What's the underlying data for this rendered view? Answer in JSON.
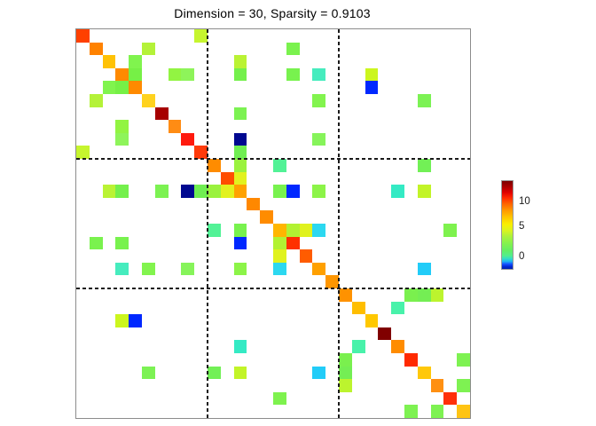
{
  "title": "Dimension = 30, Sparsity = 0.9103",
  "chart_data": {
    "type": "heatmap",
    "title": "Dimension = 30, Sparsity = 0.9103",
    "matrix_dimension": 30,
    "sparsity": 0.9103,
    "block_partitions": [
      10,
      20
    ],
    "grid": "off",
    "axis_tick_labels": "none",
    "legend_position": "colorbar-right",
    "colorbar": {
      "ticks": [
        {
          "label": "10",
          "pos_from_top": 0.245
        },
        {
          "label": "5",
          "pos_from_top": 0.53
        },
        {
          "label": "0",
          "pos_from_top": 0.864
        }
      ],
      "gradient_top_to_bottom": [
        {
          "p": 0,
          "c": "#7A0000"
        },
        {
          "p": 6,
          "c": "#A80000"
        },
        {
          "p": 13,
          "c": "#E00000"
        },
        {
          "p": 19,
          "c": "#FF2800"
        },
        {
          "p": 26,
          "c": "#FF6400"
        },
        {
          "p": 33,
          "c": "#FF9600"
        },
        {
          "p": 41,
          "c": "#FFC400"
        },
        {
          "p": 49,
          "c": "#FAEE00"
        },
        {
          "p": 56,
          "c": "#DCF41E"
        },
        {
          "p": 63,
          "c": "#ACF23C"
        },
        {
          "p": 71,
          "c": "#84F24E"
        },
        {
          "p": 79,
          "c": "#64EE64"
        },
        {
          "p": 85,
          "c": "#52EE8C"
        },
        {
          "p": 88.5,
          "c": "#32DCC8"
        },
        {
          "p": 91.5,
          "c": "#1EB4F0"
        },
        {
          "p": 94.5,
          "c": "#1450FF"
        },
        {
          "p": 97.5,
          "c": "#0028D2"
        },
        {
          "p": 100,
          "c": "#0020AE"
        }
      ]
    },
    "cells": [
      [
        0,
        0,
        "#FF4000"
      ],
      [
        1,
        1,
        "#FF8200"
      ],
      [
        2,
        2,
        "#FFC206"
      ],
      [
        3,
        3,
        "#FF8A00"
      ],
      [
        4,
        4,
        "#FF8A00"
      ],
      [
        5,
        5,
        "#FFD21E"
      ],
      [
        6,
        6,
        "#A60000"
      ],
      [
        7,
        7,
        "#FF8C14"
      ],
      [
        8,
        8,
        "#FF1A0E"
      ],
      [
        9,
        9,
        "#FF3B0B"
      ],
      [
        10,
        10,
        "#FF8C00"
      ],
      [
        11,
        11,
        "#FF4E00"
      ],
      [
        12,
        12,
        "#FFA200"
      ],
      [
        13,
        13,
        "#FF8800"
      ],
      [
        14,
        14,
        "#FF8C00"
      ],
      [
        15,
        15,
        "#FFB600"
      ],
      [
        16,
        16,
        "#FF3000"
      ],
      [
        17,
        17,
        "#FF5C00"
      ],
      [
        18,
        18,
        "#FFA000"
      ],
      [
        19,
        19,
        "#FF9600"
      ],
      [
        20,
        20,
        "#FF9200"
      ],
      [
        21,
        21,
        "#FFBE00"
      ],
      [
        22,
        22,
        "#FFC800"
      ],
      [
        23,
        23,
        "#800000"
      ],
      [
        24,
        24,
        "#FF8C00"
      ],
      [
        25,
        25,
        "#FF2A00"
      ],
      [
        26,
        26,
        "#FFC80A"
      ],
      [
        27,
        27,
        "#FF9012"
      ],
      [
        28,
        28,
        "#FF3008"
      ],
      [
        29,
        29,
        "#FFC414"
      ],
      [
        0,
        9,
        "#C6F52E"
      ],
      [
        9,
        0,
        "#C6F52E"
      ],
      [
        1,
        5,
        "#B4F238"
      ],
      [
        5,
        1,
        "#B4F238"
      ],
      [
        1,
        16,
        "#7AF24E"
      ],
      [
        16,
        1,
        "#7AF24E"
      ],
      [
        2,
        4,
        "#80F44E"
      ],
      [
        4,
        2,
        "#80F44E"
      ],
      [
        3,
        4,
        "#76F046"
      ],
      [
        4,
        3,
        "#76F046"
      ],
      [
        2,
        12,
        "#BAF334"
      ],
      [
        12,
        2,
        "#BAF334"
      ],
      [
        3,
        7,
        "#92F442"
      ],
      [
        7,
        3,
        "#92F442"
      ],
      [
        3,
        8,
        "#8EF45A"
      ],
      [
        8,
        3,
        "#8EF45A"
      ],
      [
        3,
        12,
        "#74F04C"
      ],
      [
        12,
        3,
        "#74F04C"
      ],
      [
        3,
        16,
        "#78F24E"
      ],
      [
        16,
        3,
        "#78F24E"
      ],
      [
        3,
        18,
        "#46ECBE"
      ],
      [
        18,
        3,
        "#46ECBE"
      ],
      [
        3,
        22,
        "#CCF61E"
      ],
      [
        22,
        3,
        "#CCF61E"
      ],
      [
        4,
        22,
        "#0028FF"
      ],
      [
        22,
        4,
        "#0028FF"
      ],
      [
        5,
        18,
        "#82F44E"
      ],
      [
        18,
        5,
        "#82F44E"
      ],
      [
        5,
        26,
        "#7CF254"
      ],
      [
        26,
        5,
        "#7CF254"
      ],
      [
        6,
        12,
        "#7CF252"
      ],
      [
        12,
        6,
        "#7CF252"
      ],
      [
        8,
        12,
        "#000890"
      ],
      [
        12,
        8,
        "#000890"
      ],
      [
        8,
        18,
        "#86F45A"
      ],
      [
        18,
        8,
        "#86F45A"
      ],
      [
        9,
        12,
        "#70EE52"
      ],
      [
        12,
        9,
        "#70EE52"
      ],
      [
        10,
        12,
        "#9AF23E"
      ],
      [
        12,
        10,
        "#9AF23E"
      ],
      [
        10,
        15,
        "#52F296"
      ],
      [
        15,
        10,
        "#52F296"
      ],
      [
        10,
        26,
        "#72F056"
      ],
      [
        26,
        10,
        "#72F056"
      ],
      [
        11,
        12,
        "#E2F21E"
      ],
      [
        12,
        11,
        "#E2F21E"
      ],
      [
        12,
        15,
        "#78F24E"
      ],
      [
        15,
        12,
        "#78F24E"
      ],
      [
        12,
        16,
        "#0028FF"
      ],
      [
        16,
        12,
        "#0028FF"
      ],
      [
        12,
        18,
        "#8CF448"
      ],
      [
        18,
        12,
        "#8CF448"
      ],
      [
        12,
        24,
        "#34EAC4"
      ],
      [
        24,
        12,
        "#34EAC4"
      ],
      [
        12,
        26,
        "#C2F428"
      ],
      [
        26,
        12,
        "#C2F428"
      ],
      [
        15,
        16,
        "#B2F232"
      ],
      [
        16,
        15,
        "#B2F232"
      ],
      [
        15,
        17,
        "#E0F21E"
      ],
      [
        17,
        15,
        "#E0F21E"
      ],
      [
        15,
        18,
        "#2CD8F0"
      ],
      [
        18,
        15,
        "#2CD8F0"
      ],
      [
        15,
        28,
        "#7EF24E"
      ],
      [
        28,
        15,
        "#7EF24E"
      ],
      [
        18,
        26,
        "#22CCF8"
      ],
      [
        26,
        18,
        "#22CCF8"
      ],
      [
        20,
        25,
        "#7AF04E"
      ],
      [
        25,
        20,
        "#7AF04E"
      ],
      [
        20,
        26,
        "#74EE54"
      ],
      [
        26,
        20,
        "#74EE54"
      ],
      [
        20,
        27,
        "#BCF42E"
      ],
      [
        27,
        20,
        "#BCF42E"
      ],
      [
        21,
        24,
        "#48F2AA"
      ],
      [
        24,
        21,
        "#48F2AA"
      ],
      [
        25,
        29,
        "#7EF252"
      ],
      [
        29,
        25,
        "#7EF252"
      ],
      [
        27,
        29,
        "#7EF252"
      ],
      [
        29,
        27,
        "#7EF252"
      ]
    ]
  }
}
